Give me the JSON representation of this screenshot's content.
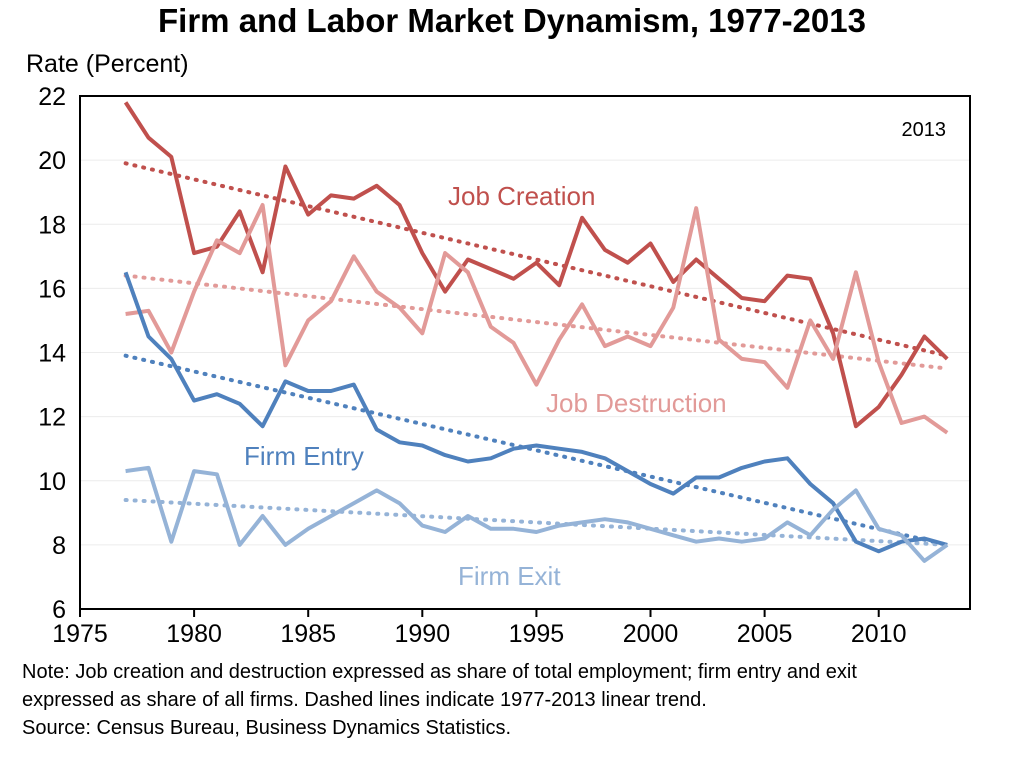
{
  "chart_data": {
    "type": "line",
    "title": "Firm and Labor Market Dynamism, 1977-2013",
    "ylabel": "Rate (Percent)",
    "xlabel": "",
    "xlim": [
      1975,
      2014
    ],
    "ylim": [
      6,
      22
    ],
    "xticks": [
      1975,
      1980,
      1985,
      1990,
      1995,
      2000,
      2005,
      2010
    ],
    "yticks": [
      6,
      8,
      10,
      12,
      14,
      16,
      18,
      20,
      22
    ],
    "annotation": "2013",
    "grid": true,
    "x": [
      1977,
      1978,
      1979,
      1980,
      1981,
      1982,
      1983,
      1984,
      1985,
      1986,
      1987,
      1988,
      1989,
      1990,
      1991,
      1992,
      1993,
      1994,
      1995,
      1996,
      1997,
      1998,
      1999,
      2000,
      2001,
      2002,
      2003,
      2004,
      2005,
      2006,
      2007,
      2008,
      2009,
      2010,
      2011,
      2012,
      2013
    ],
    "series": [
      {
        "name": "Job Creation",
        "label": "Job Creation",
        "color": "#c0504d",
        "trend": [
          19.9,
          13.9
        ],
        "values": [
          21.8,
          20.7,
          20.1,
          17.1,
          17.3,
          18.4,
          16.5,
          19.8,
          18.3,
          18.9,
          18.8,
          19.2,
          18.6,
          17.1,
          15.9,
          16.9,
          16.6,
          16.3,
          16.8,
          16.1,
          18.2,
          17.2,
          16.8,
          17.4,
          16.2,
          16.9,
          16.3,
          15.7,
          15.6,
          16.4,
          16.3,
          14.6,
          11.7,
          12.3,
          13.3,
          14.5,
          13.8
        ]
      },
      {
        "name": "Job Destruction",
        "label": "Job Destruction",
        "color": "#e29a98",
        "trend": [
          16.4,
          13.5
        ],
        "values": [
          15.2,
          15.3,
          14.0,
          15.9,
          17.5,
          17.1,
          18.6,
          13.6,
          15.0,
          15.6,
          17.0,
          15.9,
          15.4,
          14.6,
          17.1,
          16.5,
          14.8,
          14.3,
          13.0,
          14.4,
          15.5,
          14.2,
          14.5,
          14.2,
          15.4,
          18.5,
          14.4,
          13.8,
          13.7,
          12.9,
          15.0,
          13.8,
          16.5,
          13.7,
          11.8,
          12.0,
          11.5
        ]
      },
      {
        "name": "Firm Entry",
        "label": "Firm Entry",
        "color": "#4f81bd",
        "trend": [
          13.9,
          8.0
        ],
        "values": [
          16.5,
          14.5,
          13.8,
          12.5,
          12.7,
          12.4,
          11.7,
          13.1,
          12.8,
          12.8,
          13.0,
          11.6,
          11.2,
          11.1,
          10.8,
          10.6,
          10.7,
          11.0,
          11.1,
          11.0,
          10.9,
          10.7,
          10.3,
          9.9,
          9.6,
          10.1,
          10.1,
          10.4,
          10.6,
          10.7,
          9.9,
          9.3,
          8.1,
          7.8,
          8.1,
          8.2,
          8.0
        ]
      },
      {
        "name": "Firm Exit",
        "label": "Firm Exit",
        "color": "#95b3d7",
        "trend": [
          9.4,
          8.0
        ],
        "values": [
          10.3,
          10.4,
          8.1,
          10.3,
          10.2,
          8.0,
          8.9,
          8.0,
          8.5,
          8.9,
          9.3,
          9.7,
          9.3,
          8.6,
          8.4,
          8.9,
          8.5,
          8.5,
          8.4,
          8.6,
          8.7,
          8.8,
          8.7,
          8.5,
          8.3,
          8.1,
          8.2,
          8.1,
          8.2,
          8.7,
          8.3,
          9.1,
          9.7,
          8.5,
          8.3,
          7.5,
          8.0
        ]
      }
    ]
  },
  "notes": [
    "Note: Job creation and destruction expressed as share of total employment; firm entry and exit",
    "expressed as share of all firms. Dashed lines indicate 1977-2013 linear trend.",
    "Source: Census Bureau, Business Dynamics Statistics."
  ]
}
